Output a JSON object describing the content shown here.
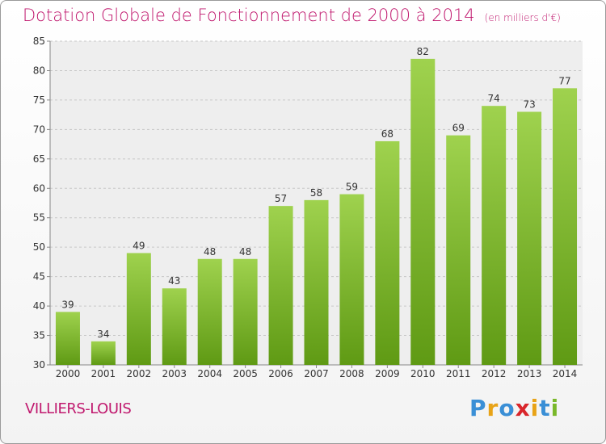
{
  "chart_data": {
    "type": "bar",
    "title": "Dotation Globale de Fonctionnement de 2000 à 2014",
    "unit": "(en milliers d'€)",
    "categories": [
      "2000",
      "2001",
      "2002",
      "2003",
      "2004",
      "2005",
      "2006",
      "2007",
      "2008",
      "2009",
      "2010",
      "2011",
      "2012",
      "2013",
      "2014"
    ],
    "values": [
      39,
      34,
      49,
      43,
      48,
      48,
      57,
      58,
      59,
      68,
      82,
      69,
      74,
      73,
      77
    ],
    "ylim": [
      30,
      85
    ],
    "yticks": [
      30,
      35,
      40,
      45,
      50,
      55,
      60,
      65,
      70,
      75,
      80,
      85
    ],
    "grid": true,
    "bar_color": "#7ab82a"
  },
  "place": "VILLIERS-LOUIS",
  "logo": {
    "letters": [
      "P",
      "r",
      "o",
      "x",
      "i",
      "t",
      "i"
    ],
    "colors": [
      "#3a8fd6",
      "#e8a317",
      "#3a8fd6",
      "#d9262b",
      "#e8a317",
      "#3a8fd6",
      "#7ab82a"
    ]
  }
}
